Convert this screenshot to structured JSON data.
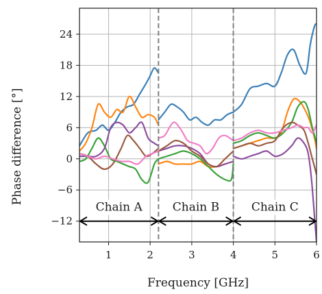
{
  "chart_data": {
    "type": "line",
    "title": "",
    "xlabel": "Frequency [GHz]",
    "ylabel": "Phase difference [°]",
    "xlim": [
      0.3,
      6.0
    ],
    "ylim": [
      -16,
      29
    ],
    "xticks": [
      1,
      2,
      3,
      4,
      5,
      6
    ],
    "yticks": [
      -12,
      -6,
      0,
      6,
      12,
      18,
      24
    ],
    "ytick_labels": [
      "−12",
      "−6",
      "0",
      "6",
      "12",
      "18",
      "24"
    ],
    "grid": true,
    "legend": "none",
    "dividers": [
      2.2,
      4.0
    ],
    "regions": [
      {
        "label": "Chain A",
        "start": 0.3,
        "end": 2.2
      },
      {
        "label": "Chain B",
        "start": 2.2,
        "end": 4.0
      },
      {
        "label": "Chain C",
        "start": 4.0,
        "end": 6.0
      }
    ],
    "series": [
      {
        "color": "#3b7fb6",
        "segments": [
          {
            "x": [
              0.3,
              0.5,
              0.7,
              0.85,
              1.0,
              1.15,
              1.3,
              1.45,
              1.6,
              1.75,
              1.9,
              2.0,
              2.1,
              2.2
            ],
            "y": [
              2.5,
              5,
              5.5,
              6.5,
              5.5,
              7,
              9,
              10,
              10.5,
              12.5,
              14.5,
              16,
              17.5,
              16.5
            ]
          },
          {
            "x": [
              2.2,
              2.35,
              2.5,
              2.65,
              2.8,
              2.95,
              3.1,
              3.25,
              3.4,
              3.55,
              3.7,
              3.85,
              4.0
            ],
            "y": [
              7.5,
              9,
              10.5,
              10,
              9,
              7.5,
              8,
              7,
              6.5,
              7.5,
              7.5,
              8.5,
              9
            ]
          },
          {
            "x": [
              4.0,
              4.2,
              4.4,
              4.6,
              4.8,
              5.0,
              5.15,
              5.3,
              5.45,
              5.6,
              5.75,
              5.85,
              5.95,
              6.0
            ],
            "y": [
              9,
              10.5,
              13.5,
              14,
              14.5,
              14,
              16.5,
              20,
              21,
              18,
              16.5,
              22,
              25.5,
              26
            ]
          }
        ]
      },
      {
        "color": "#ff8512",
        "segments": [
          {
            "x": [
              0.3,
              0.45,
              0.6,
              0.75,
              0.9,
              1.05,
              1.2,
              1.35,
              1.5,
              1.65,
              1.8,
              1.95,
              2.1,
              2.2
            ],
            "y": [
              1.5,
              3,
              6,
              10.5,
              9,
              8,
              9.5,
              9,
              12,
              10,
              8,
              8.5,
              8,
              6.5
            ]
          },
          {
            "x": [
              2.2,
              2.4,
              2.6,
              2.8,
              3.0,
              3.2,
              3.4,
              3.6,
              3.8,
              4.0
            ],
            "y": [
              -1,
              -0.5,
              -1,
              -1,
              -1,
              -0.5,
              -1.5,
              -1.5,
              -1,
              -0.5
            ]
          },
          {
            "x": [
              4.0,
              4.2,
              4.4,
              4.6,
              4.8,
              5.0,
              5.15,
              5.3,
              5.45,
              5.6,
              5.75,
              5.85,
              5.95,
              6.0
            ],
            "y": [
              2,
              2.5,
              3,
              3.5,
              4,
              4,
              5,
              9,
              11.5,
              11,
              9,
              7,
              4,
              2
            ]
          }
        ]
      },
      {
        "color": "#3aa13a",
        "segments": [
          {
            "x": [
              0.3,
              0.45,
              0.6,
              0.75,
              0.9,
              1.05,
              1.2,
              1.35,
              1.5,
              1.65,
              1.8,
              1.95,
              2.1,
              2.2
            ],
            "y": [
              -0.5,
              0,
              2,
              4,
              2.5,
              0,
              -0.5,
              -1,
              -1.5,
              -2,
              -4,
              -4.5,
              -1,
              0
            ]
          },
          {
            "x": [
              2.2,
              2.4,
              2.6,
              2.8,
              3.0,
              3.2,
              3.4,
              3.6,
              3.8,
              3.95,
              4.0
            ],
            "y": [
              0,
              0.5,
              1,
              1.5,
              1,
              0,
              -1.5,
              -3,
              -4,
              -4,
              -1
            ]
          },
          {
            "x": [
              4.0,
              4.2,
              4.4,
              4.6,
              4.8,
              5.0,
              5.2,
              5.4,
              5.55,
              5.7,
              5.8,
              5.9,
              6.0
            ],
            "y": [
              3,
              3.5,
              4.5,
              5,
              4.5,
              4,
              5,
              7,
              10,
              11,
              9.5,
              6,
              3
            ]
          }
        ]
      },
      {
        "color": "#8c4d9e",
        "segments": [
          {
            "x": [
              0.3,
              0.5,
              0.7,
              0.9,
              1.05,
              1.2,
              1.35,
              1.5,
              1.65,
              1.8,
              1.95,
              2.1,
              2.2
            ],
            "y": [
              0.5,
              0.5,
              0.5,
              2,
              6,
              7,
              6.5,
              5,
              6,
              7,
              4,
              3,
              2.5
            ]
          },
          {
            "x": [
              2.2,
              2.4,
              2.6,
              2.8,
              3.0,
              3.2,
              3.4,
              3.6,
              3.8,
              4.0
            ],
            "y": [
              1.5,
              2,
              2.5,
              2.5,
              2,
              1,
              -1,
              -1.5,
              -1,
              -0.5
            ]
          },
          {
            "x": [
              4.0,
              4.2,
              4.4,
              4.6,
              4.8,
              5.0,
              5.2,
              5.4,
              5.55,
              5.7,
              5.8,
              5.88,
              5.95,
              6.0
            ],
            "y": [
              0.5,
              0,
              0.5,
              1,
              1.5,
              0.5,
              1,
              2.5,
              4,
              3,
              1,
              -4,
              -11,
              -16
            ]
          }
        ]
      },
      {
        "color": "#9b5a40",
        "segments": [
          {
            "x": [
              0.3,
              0.5,
              0.7,
              0.9,
              1.1,
              1.3,
              1.45,
              1.6,
              1.75,
              1.9,
              2.05,
              2.2
            ],
            "y": [
              1,
              0.5,
              -1,
              -2,
              -1,
              2,
              4.5,
              3.5,
              2,
              0.5,
              1,
              2
            ]
          },
          {
            "x": [
              2.2,
              2.4,
              2.6,
              2.8,
              3.0,
              3.2,
              3.4,
              3.6,
              3.8,
              4.0
            ],
            "y": [
              1.5,
              2.5,
              3.5,
              3,
              1.5,
              0.5,
              -1,
              -1.5,
              0,
              1.5
            ]
          },
          {
            "x": [
              4.0,
              4.2,
              4.4,
              4.6,
              4.8,
              5.0,
              5.2,
              5.4,
              5.55,
              5.7,
              5.8,
              5.9,
              6.0
            ],
            "y": [
              2,
              2.5,
              3,
              2.5,
              3,
              3.5,
              6,
              7,
              6.5,
              5.5,
              3,
              0,
              -3
            ]
          }
        ]
      },
      {
        "color": "#f07fc6",
        "segments": [
          {
            "x": [
              0.3,
              0.5,
              0.7,
              0.9,
              1.1,
              1.3,
              1.5,
              1.7,
              1.9,
              2.05,
              2.2
            ],
            "y": [
              1,
              0.5,
              0,
              0.5,
              0,
              -0.5,
              -0.5,
              -1,
              0.5,
              1,
              1.5
            ]
          },
          {
            "x": [
              2.2,
              2.35,
              2.5,
              2.6,
              2.75,
              2.9,
              3.05,
              3.2,
              3.35,
              3.5,
              3.65,
              3.8,
              4.0
            ],
            "y": [
              4,
              4.5,
              6.5,
              7,
              5.5,
              3.5,
              3,
              2.5,
              1,
              2,
              4,
              4.5,
              3.5
            ]
          },
          {
            "x": [
              4.0,
              4.2,
              4.4,
              4.6,
              4.8,
              5.0,
              5.2,
              5.4,
              5.55,
              5.7,
              5.8,
              5.9,
              6.0
            ],
            "y": [
              3.5,
              4,
              5,
              5.5,
              5,
              5,
              5.5,
              6,
              6.5,
              6,
              6,
              5,
              6.5
            ]
          }
        ]
      }
    ]
  }
}
